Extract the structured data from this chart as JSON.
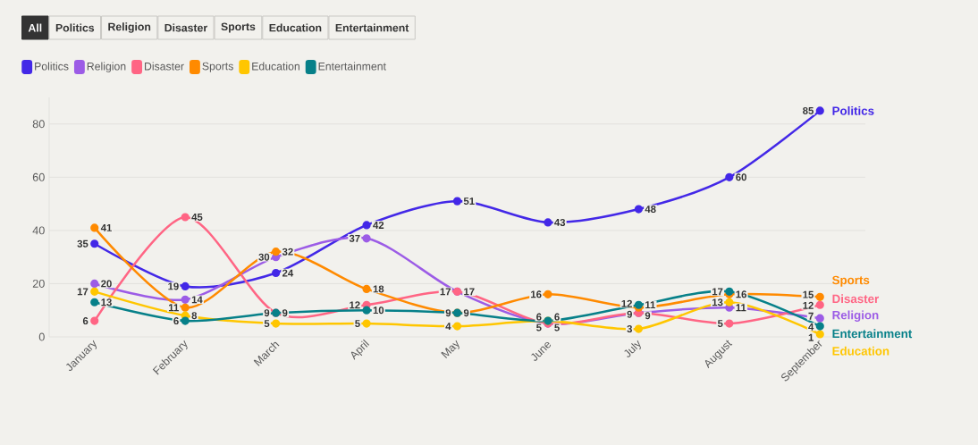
{
  "chart_data": {
    "type": "line",
    "categories": [
      "January",
      "February",
      "March",
      "April",
      "May",
      "June",
      "July",
      "August",
      "September"
    ],
    "series": [
      {
        "name": "Politics",
        "color": "#4328e7",
        "values": [
          35,
          19,
          24,
          42,
          51,
          43,
          48,
          60,
          85
        ]
      },
      {
        "name": "Religion",
        "color": "#9c5ce6",
        "values": [
          20,
          14,
          30,
          37,
          17,
          5,
          9,
          11,
          7
        ]
      },
      {
        "name": "Disaster",
        "color": "#ff6584",
        "values": [
          6,
          45,
          9,
          12,
          17,
          5,
          9,
          5,
          12
        ]
      },
      {
        "name": "Sports",
        "color": "#ff8a00",
        "values": [
          41,
          11,
          32,
          18,
          9,
          16,
          11,
          16,
          15
        ]
      },
      {
        "name": "Education",
        "color": "#ffc600",
        "values": [
          17,
          8,
          5,
          5,
          4,
          6,
          3,
          13,
          1
        ]
      },
      {
        "name": "Entertainment",
        "color": "#078089",
        "values": [
          13,
          6,
          9,
          10,
          9,
          6,
          12,
          17,
          4
        ]
      }
    ],
    "ylim": [
      0,
      90
    ],
    "yticks": [
      0,
      20,
      40,
      60,
      80
    ],
    "grid": "y",
    "legend": "top left",
    "marker": "circle",
    "line_style": "solid",
    "data_labels": true,
    "annotations": [
      "All"
    ]
  }
}
